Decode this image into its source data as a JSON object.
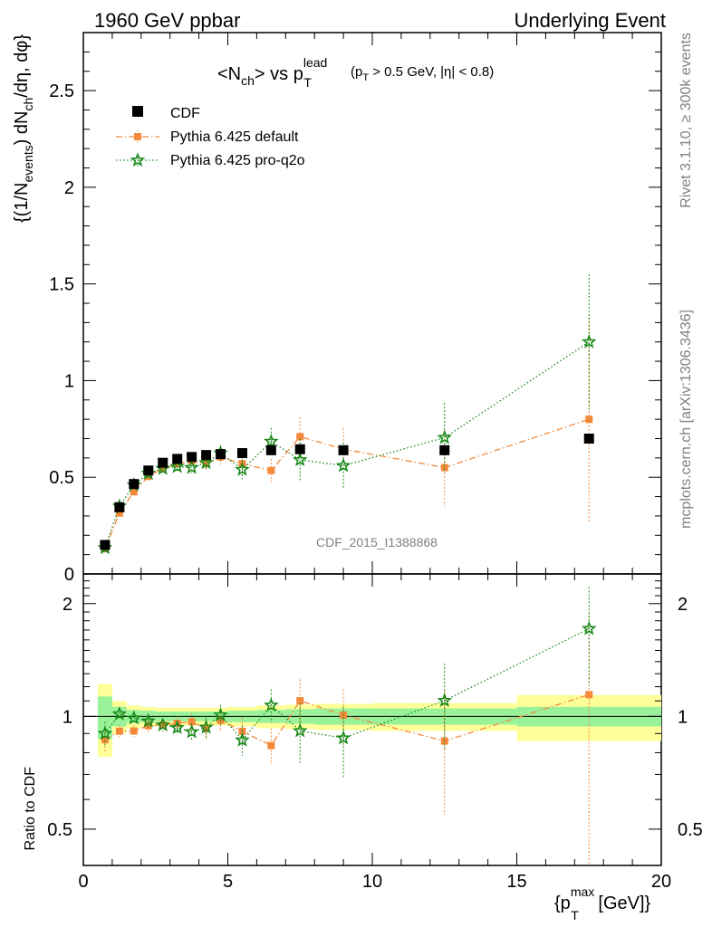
{
  "header": {
    "left": "1960 GeV ppbar",
    "right": "Underlying Event"
  },
  "side": {
    "rivet": "Rivet 3.1.10, ≥ 300k events",
    "mcplots": "mcplots.cern.ch [arXiv:1306.3436]"
  },
  "plot_title": {
    "main": "<N",
    "sub1": "ch",
    "mid": "> vs p",
    "sup": "lead",
    "sub2": "T",
    "cut1": "(p",
    "cut1sub": "T",
    "cut2": " > 0.5 GeV, |η| < 0.8)"
  },
  "ylabel_main": {
    "a": "{(1/N",
    "asub": "events",
    "b": ") dN",
    "bsub": "ch",
    "c": "/dη, dφ}"
  },
  "ylabel_ratio": "Ratio to CDF",
  "xlabel": {
    "a": "{p",
    "sup": "max",
    "sub": "T",
    "b": " [GeV]}"
  },
  "watermark": "CDF_2015_I1388868",
  "legend": [
    {
      "label": "CDF",
      "color": "#000000",
      "marker": "square"
    },
    {
      "label": "Pythia 6.425 default",
      "color": "#f5893a",
      "marker": "square-small"
    },
    {
      "label": "Pythia 6.425 pro-q2o",
      "color": "#1a8a1a",
      "marker": "star"
    }
  ],
  "axes": {
    "xticks": [
      "0",
      "5",
      "10",
      "15",
      "20"
    ],
    "yticks_main": [
      "0",
      "0.5",
      "1",
      "1.5",
      "2",
      "2.5"
    ],
    "yticks_ratio": [
      "0.5",
      "1",
      "2"
    ]
  },
  "chart_data": {
    "type": "scatter",
    "x": [
      0.75,
      1.25,
      1.75,
      2.25,
      2.75,
      3.25,
      3.75,
      4.25,
      4.75,
      5.5,
      6.5,
      7.5,
      9.0,
      12.5,
      17.5
    ],
    "xlim": [
      0,
      20
    ],
    "ylim": [
      0,
      2.8
    ],
    "ratio_ylim": [
      0.4,
      2.4
    ],
    "x_bin_edges": [
      0.5,
      1.0,
      1.5,
      2.0,
      2.5,
      3.0,
      3.5,
      4.0,
      4.5,
      5.0,
      6.0,
      7.0,
      8.0,
      10.0,
      15.0,
      20.0
    ],
    "series": [
      {
        "name": "CDF",
        "values": [
          0.15,
          0.345,
          0.465,
          0.535,
          0.575,
          0.595,
          0.605,
          0.615,
          0.62,
          0.625,
          0.64,
          0.645,
          0.64,
          0.64,
          0.7
        ],
        "band_stat_rel": [
          0.13,
          0.06,
          0.04,
          0.035,
          0.03,
          0.03,
          0.03,
          0.03,
          0.03,
          0.035,
          0.04,
          0.045,
          0.05,
          0.05,
          0.06
        ],
        "band_tot_rel": [
          0.22,
          0.1,
          0.07,
          0.06,
          0.055,
          0.055,
          0.055,
          0.055,
          0.055,
          0.06,
          0.07,
          0.075,
          0.08,
          0.085,
          0.14
        ]
      },
      {
        "name": "Pythia 6.425 default",
        "values": [
          0.13,
          0.315,
          0.425,
          0.505,
          0.545,
          0.57,
          0.585,
          0.57,
          0.605,
          0.57,
          0.535,
          0.71,
          0.645,
          0.55,
          0.8
        ],
        "errors": [
          0.01,
          0.012,
          0.015,
          0.02,
          0.02,
          0.025,
          0.03,
          0.035,
          0.04,
          0.05,
          0.06,
          0.1,
          0.11,
          0.2,
          0.53
        ]
      },
      {
        "name": "Pythia 6.425 pro-q2o",
        "values": [
          0.135,
          0.35,
          0.46,
          0.52,
          0.545,
          0.555,
          0.55,
          0.575,
          0.625,
          0.54,
          0.685,
          0.59,
          0.56,
          0.705,
          1.2
        ],
        "errors": [
          0.01,
          0.012,
          0.015,
          0.02,
          0.02,
          0.025,
          0.03,
          0.035,
          0.04,
          0.05,
          0.07,
          0.11,
          0.12,
          0.18,
          0.35
        ]
      }
    ]
  }
}
